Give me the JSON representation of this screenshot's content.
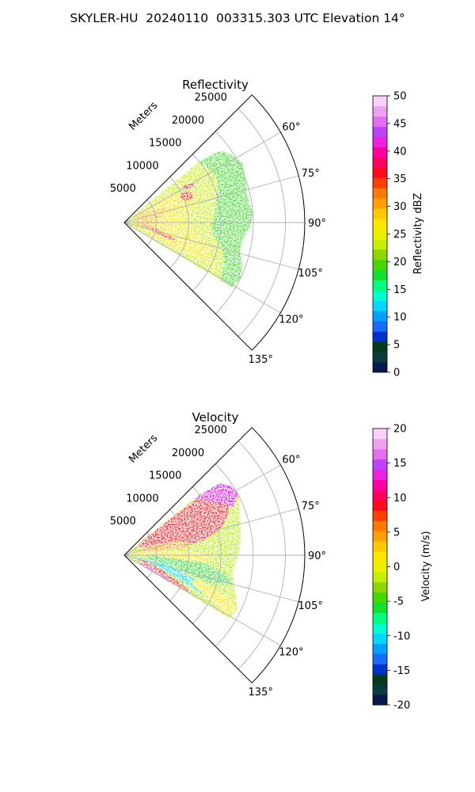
{
  "title": "SKYLER-HU  20240110  003315.303 UTC Elevation 14°",
  "panels": [
    {
      "title": "Reflectivity",
      "range_unit_label": "Meters",
      "colorbar_label": "Reflectivity dBZ"
    },
    {
      "title": "Velocity",
      "range_unit_label": "Meters",
      "colorbar_label": "Velocity (m/s)"
    }
  ],
  "chart_data": [
    {
      "type": "polar-sector (PPI)",
      "title": "Reflectivity",
      "angle_range_deg": [
        45,
        135
      ],
      "range_limit_m": [
        0,
        28000
      ],
      "range_ticks_m": [
        5000,
        10000,
        15000,
        20000,
        25000
      ],
      "range_tick_labels": [
        "5000",
        "10000",
        "15000",
        "20000",
        "25000"
      ],
      "angle_ticks_deg": [
        60,
        75,
        90,
        105,
        120,
        135
      ],
      "angle_tick_labels": [
        "60°",
        "75°",
        "90°",
        "105°",
        "120°",
        "135°"
      ],
      "range_axis_label": "Meters",
      "grid": true,
      "data_extent": {
        "angles_deg": [
          51,
          121
        ],
        "max_range_m": [
          19000,
          22000
        ]
      },
      "colorbar": {
        "label": "Reflectivity dBZ",
        "range": [
          0,
          50
        ],
        "ticks": [
          0,
          5,
          10,
          15,
          20,
          25,
          30,
          35,
          40,
          45,
          50
        ],
        "colors": [
          "#061a4d",
          "#0a3a3a",
          "#063a1a",
          "#0033cc",
          "#1a6aff",
          "#00a0ff",
          "#00d8ff",
          "#00ffd0",
          "#00ff80",
          "#10e030",
          "#46d600",
          "#8ed600",
          "#c6ee00",
          "#eaf000",
          "#ffe600",
          "#ffc800",
          "#ffa000",
          "#ff7a00",
          "#ff4000",
          "#ff0a1a",
          "#ff0060",
          "#ff00a0",
          "#f020e0",
          "#c040ff",
          "#e070f0",
          "#f0a0f0",
          "#fad0f8"
        ]
      }
    },
    {
      "type": "polar-sector (PPI)",
      "title": "Velocity",
      "angle_range_deg": [
        45,
        135
      ],
      "range_limit_m": [
        0,
        28000
      ],
      "range_ticks_m": [
        5000,
        10000,
        15000,
        20000,
        25000
      ],
      "range_tick_labels": [
        "5000",
        "10000",
        "15000",
        "20000",
        "25000"
      ],
      "angle_ticks_deg": [
        60,
        75,
        90,
        105,
        120,
        135
      ],
      "angle_tick_labels": [
        "60°",
        "75°",
        "90°",
        "105°",
        "120°",
        "135°"
      ],
      "range_axis_label": "Meters",
      "grid": true,
      "data_extent": {
        "angles_deg": [
          51,
          121
        ],
        "max_range_m": [
          19000,
          22000
        ]
      },
      "colorbar": {
        "label": "Velocity (m/s)",
        "range": [
          -20,
          20
        ],
        "ticks": [
          -20,
          -15,
          -10,
          -5,
          0,
          5,
          10,
          15,
          20
        ],
        "colors": [
          "#061a4d",
          "#0a3a3a",
          "#063a1a",
          "#0033cc",
          "#1a6aff",
          "#00a0ff",
          "#00d8ff",
          "#00ffd0",
          "#00ff80",
          "#10e030",
          "#46d600",
          "#8ed600",
          "#c6ee00",
          "#eaf000",
          "#ffe600",
          "#ffc800",
          "#ffa000",
          "#ff7a00",
          "#ff4000",
          "#ff0a1a",
          "#ff0060",
          "#ff00a0",
          "#f020e0",
          "#c040ff",
          "#e070f0",
          "#f0a0f0",
          "#fad0f8"
        ]
      }
    }
  ]
}
